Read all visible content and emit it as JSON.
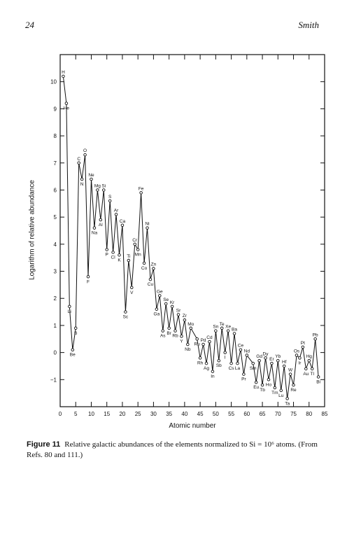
{
  "header": {
    "page_number": "24",
    "running_head": "Smith"
  },
  "caption": {
    "figure_label": "Figure 11",
    "text": "Relative galactic abundances of the elements normalized to Si = 10⁶ atoms. (From Refs. 80 and 111.)"
  },
  "chart_data": {
    "type": "line",
    "xlabel": "Atomic number",
    "ylabel": "Logarithm of relative abundance",
    "xlim": [
      0,
      85
    ],
    "ylim": [
      -2,
      11
    ],
    "x_ticks": [
      0,
      5,
      10,
      15,
      20,
      25,
      30,
      35,
      40,
      45,
      50,
      55,
      60,
      65,
      70,
      75,
      80,
      85
    ],
    "y_ticks": [
      -1,
      0,
      1,
      2,
      3,
      4,
      5,
      6,
      7,
      8,
      9,
      10
    ],
    "grid": false,
    "series": [
      {
        "points": [
          {
            "z": 1,
            "symbol": "H",
            "y": 10.2
          },
          {
            "z": 2,
            "symbol": "He",
            "y": 9.2
          },
          {
            "z": 3,
            "symbol": "Li",
            "y": 1.7
          },
          {
            "z": 4,
            "symbol": "Be",
            "y": 0.1
          },
          {
            "z": 5,
            "symbol": "B",
            "y": 0.9
          },
          {
            "z": 6,
            "symbol": "C",
            "y": 7.0
          },
          {
            "z": 7,
            "symbol": "N",
            "y": 6.4
          },
          {
            "z": 8,
            "symbol": "O",
            "y": 7.3
          },
          {
            "z": 9,
            "symbol": "F",
            "y": 2.8
          },
          {
            "z": 10,
            "symbol": "Ne",
            "y": 6.4
          },
          {
            "z": 11,
            "symbol": "Na",
            "y": 4.6
          },
          {
            "z": 12,
            "symbol": "Mg",
            "y": 6.0
          },
          {
            "z": 13,
            "symbol": "Al",
            "y": 4.9
          },
          {
            "z": 14,
            "symbol": "Si",
            "y": 6.0
          },
          {
            "z": 15,
            "symbol": "P",
            "y": 3.8
          },
          {
            "z": 16,
            "symbol": "S",
            "y": 5.6
          },
          {
            "z": 17,
            "symbol": "Cl",
            "y": 3.7
          },
          {
            "z": 18,
            "symbol": "Ar",
            "y": 5.1
          },
          {
            "z": 19,
            "symbol": "K",
            "y": 3.6
          },
          {
            "z": 20,
            "symbol": "Ca",
            "y": 4.7
          },
          {
            "z": 21,
            "symbol": "Sc",
            "y": 1.5
          },
          {
            "z": 22,
            "symbol": "Ti",
            "y": 3.4
          },
          {
            "z": 23,
            "symbol": "V",
            "y": 2.4
          },
          {
            "z": 24,
            "symbol": "Cr",
            "y": 4.0
          },
          {
            "z": 25,
            "symbol": "Mn",
            "y": 3.8
          },
          {
            "z": 26,
            "symbol": "Fe",
            "y": 5.9
          },
          {
            "z": 27,
            "symbol": "Co",
            "y": 3.3
          },
          {
            "z": 28,
            "symbol": "Ni",
            "y": 4.6
          },
          {
            "z": 29,
            "symbol": "Cu",
            "y": 2.7
          },
          {
            "z": 30,
            "symbol": "Zn",
            "y": 3.1
          },
          {
            "z": 31,
            "symbol": "Ga",
            "y": 1.6
          },
          {
            "z": 32,
            "symbol": "Ge",
            "y": 2.1
          },
          {
            "z": 33,
            "symbol": "As",
            "y": 0.8
          },
          {
            "z": 34,
            "symbol": "Se",
            "y": 1.8
          },
          {
            "z": 35,
            "symbol": "Br",
            "y": 0.9
          },
          {
            "z": 36,
            "symbol": "Kr",
            "y": 1.7
          },
          {
            "z": 37,
            "symbol": "Rb",
            "y": 0.8
          },
          {
            "z": 38,
            "symbol": "Sr",
            "y": 1.4
          },
          {
            "z": 39,
            "symbol": "Y",
            "y": 0.6
          },
          {
            "z": 40,
            "symbol": "Zr",
            "y": 1.2
          },
          {
            "z": 41,
            "symbol": "Nb",
            "y": 0.3
          },
          {
            "z": 42,
            "symbol": "Mo",
            "y": 0.9
          },
          {
            "z": 44,
            "symbol": "Ru",
            "y": 0.5
          },
          {
            "z": 45,
            "symbol": "Rh",
            "y": -0.2
          },
          {
            "z": 46,
            "symbol": "Pd",
            "y": 0.3
          },
          {
            "z": 47,
            "symbol": "Ag",
            "y": -0.4
          },
          {
            "z": 48,
            "symbol": "Cd",
            "y": 0.4
          },
          {
            "z": 49,
            "symbol": "In",
            "y": -0.7
          },
          {
            "z": 50,
            "symbol": "Sn",
            "y": 0.8
          },
          {
            "z": 51,
            "symbol": "Sb",
            "y": -0.3
          },
          {
            "z": 52,
            "symbol": "Te",
            "y": 0.9
          },
          {
            "z": 53,
            "symbol": "I",
            "y": 0.0
          },
          {
            "z": 54,
            "symbol": "Xe",
            "y": 0.8
          },
          {
            "z": 55,
            "symbol": "Cs",
            "y": -0.4
          },
          {
            "z": 56,
            "symbol": "Ba",
            "y": 0.7
          },
          {
            "z": 57,
            "symbol": "La",
            "y": -0.4
          },
          {
            "z": 58,
            "symbol": "Ce",
            "y": 0.1
          },
          {
            "z": 59,
            "symbol": "Pr",
            "y": -0.8
          },
          {
            "z": 60,
            "symbol": "Nd",
            "y": -0.1
          },
          {
            "z": 62,
            "symbol": "Sm",
            "y": -0.4
          },
          {
            "z": 63,
            "symbol": "Eu",
            "y": -1.1
          },
          {
            "z": 64,
            "symbol": "Gd",
            "y": -0.3
          },
          {
            "z": 65,
            "symbol": "Tb",
            "y": -1.2
          },
          {
            "z": 66,
            "symbol": "Dy",
            "y": -0.2
          },
          {
            "z": 67,
            "symbol": "Ho",
            "y": -1.0
          },
          {
            "z": 68,
            "symbol": "Er",
            "y": -0.4
          },
          {
            "z": 69,
            "symbol": "Tm",
            "y": -1.3
          },
          {
            "z": 70,
            "symbol": "Yb",
            "y": -0.3
          },
          {
            "z": 71,
            "symbol": "Lu",
            "y": -1.4
          },
          {
            "z": 72,
            "symbol": "Hf",
            "y": -0.5
          },
          {
            "z": 73,
            "symbol": "Ta",
            "y": -1.7
          },
          {
            "z": 74,
            "symbol": "W",
            "y": -0.8
          },
          {
            "z": 75,
            "symbol": "Re",
            "y": -1.2
          },
          {
            "z": 76,
            "symbol": "Os",
            "y": -0.1
          },
          {
            "z": 77,
            "symbol": "Ir",
            "y": -0.2
          },
          {
            "z": 78,
            "symbol": "Pt",
            "y": 0.2
          },
          {
            "z": 79,
            "symbol": "Au",
            "y": -0.6
          },
          {
            "z": 80,
            "symbol": "Hg",
            "y": -0.3
          },
          {
            "z": 81,
            "symbol": "Tl",
            "y": -0.6
          },
          {
            "z": 82,
            "symbol": "Pb",
            "y": 0.5
          },
          {
            "z": 83,
            "symbol": "Bi",
            "y": -0.9
          }
        ]
      }
    ]
  }
}
